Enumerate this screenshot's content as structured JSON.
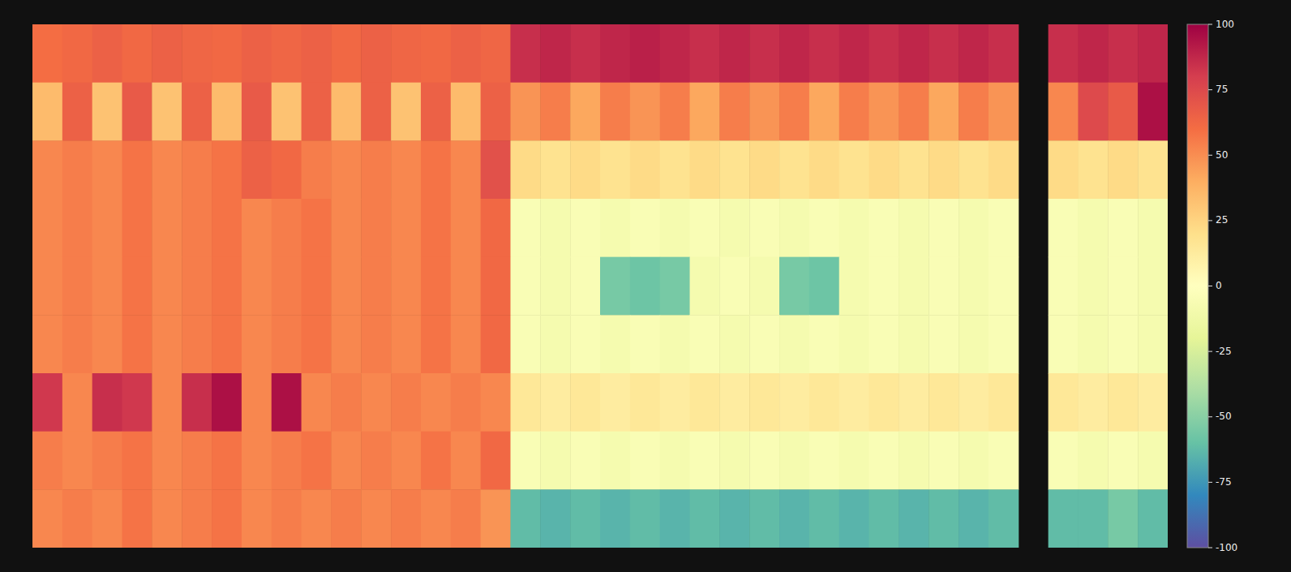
{
  "chart_data": {
    "type": "heatmap",
    "values": [
      [
        60,
        62,
        65,
        62,
        65,
        63,
        62,
        65,
        63,
        65,
        62,
        65,
        63,
        62,
        65,
        63,
        85,
        88,
        85,
        88,
        90,
        88,
        85,
        88,
        85,
        88,
        85,
        88,
        85,
        88,
        85,
        88,
        85,
        null,
        85,
        88,
        85,
        88
      ],
      [
        35,
        65,
        32,
        68,
        32,
        65,
        35,
        68,
        32,
        65,
        35,
        65,
        32,
        65,
        35,
        65,
        48,
        55,
        42,
        55,
        48,
        55,
        42,
        55,
        48,
        55,
        42,
        55,
        48,
        55,
        42,
        55,
        48,
        null,
        52,
        75,
        68,
        95
      ],
      [
        52,
        55,
        52,
        58,
        52,
        55,
        58,
        65,
        62,
        55,
        52,
        55,
        52,
        58,
        52,
        72,
        22,
        18,
        22,
        18,
        22,
        18,
        22,
        18,
        22,
        18,
        22,
        18,
        22,
        18,
        22,
        18,
        22,
        null,
        22,
        18,
        22,
        18
      ],
      [
        52,
        55,
        52,
        58,
        52,
        55,
        58,
        52,
        55,
        58,
        52,
        55,
        52,
        58,
        52,
        62,
        -5,
        -8,
        -5,
        -8,
        -5,
        -8,
        -5,
        -8,
        -5,
        -8,
        -5,
        -8,
        -5,
        -8,
        -5,
        -8,
        -5,
        null,
        -5,
        -8,
        -5,
        -8
      ],
      [
        52,
        55,
        52,
        58,
        52,
        55,
        58,
        52,
        55,
        58,
        52,
        55,
        52,
        58,
        52,
        62,
        -5,
        -8,
        -5,
        -55,
        -58,
        -55,
        -8,
        -5,
        -8,
        -55,
        -58,
        -8,
        -5,
        -8,
        -5,
        -8,
        -5,
        null,
        -5,
        -8,
        -5,
        -8
      ],
      [
        52,
        55,
        52,
        58,
        52,
        55,
        58,
        52,
        55,
        58,
        52,
        55,
        52,
        58,
        52,
        62,
        -5,
        -8,
        -5,
        -8,
        -5,
        -8,
        -5,
        -8,
        -5,
        -8,
        -5,
        -8,
        -5,
        -8,
        -5,
        -8,
        -5,
        null,
        -5,
        -8,
        -5,
        -8
      ],
      [
        82,
        52,
        85,
        82,
        52,
        85,
        95,
        52,
        95,
        52,
        55,
        52,
        55,
        52,
        55,
        52,
        15,
        12,
        15,
        12,
        15,
        12,
        15,
        12,
        15,
        12,
        15,
        12,
        15,
        12,
        15,
        12,
        15,
        null,
        15,
        12,
        15,
        12
      ],
      [
        55,
        52,
        55,
        58,
        52,
        55,
        58,
        52,
        55,
        58,
        52,
        55,
        52,
        58,
        52,
        62,
        -5,
        -8,
        -5,
        -8,
        -5,
        -8,
        -5,
        -8,
        -5,
        -8,
        -5,
        -8,
        -5,
        -8,
        -5,
        -8,
        -5,
        null,
        -5,
        -8,
        -5,
        -8
      ],
      [
        52,
        55,
        52,
        58,
        52,
        55,
        58,
        52,
        55,
        52,
        55,
        52,
        55,
        52,
        55,
        48,
        -62,
        -65,
        -62,
        -65,
        -62,
        -65,
        -62,
        -65,
        -62,
        -65,
        -62,
        -65,
        -62,
        -65,
        -62,
        -65,
        -62,
        null,
        -62,
        -62,
        -55,
        -62
      ]
    ],
    "color_range": [
      -100,
      100
    ],
    "color_ticks": [
      -100,
      -75,
      -50,
      -25,
      0,
      25,
      50,
      75,
      100
    ]
  }
}
